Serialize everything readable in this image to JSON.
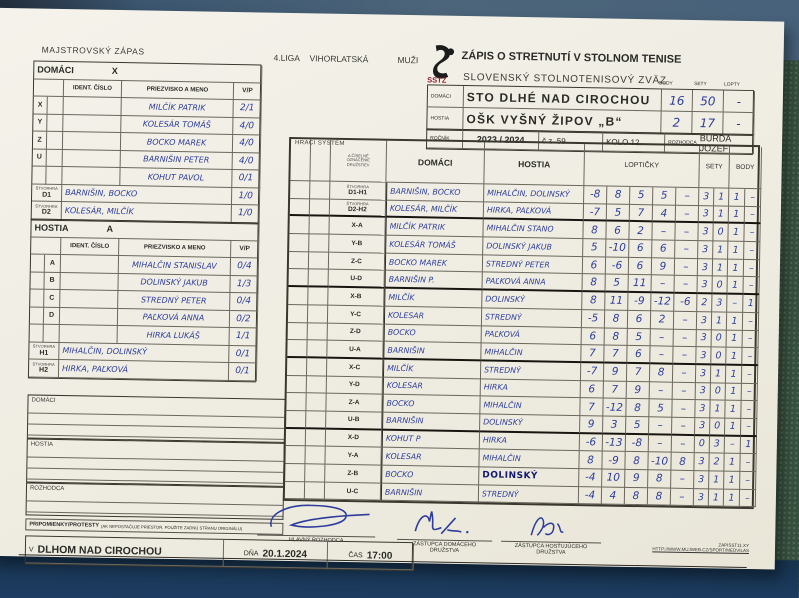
{
  "header": {
    "match_type": "MAJSTROVSKÝ ZÁPAS",
    "league": "4.LIGA",
    "region": "VIHORLATSKÁ",
    "category": "MUŽI",
    "logo_text": "SSTZ",
    "title": "ZÁPIS O STRETNUTÍ V STOLNOM TENISE",
    "subtitle": "SLOVENSKÝ STOLNOTENISOVÝ ZVÄZ",
    "score_col_labels": [
      "BODY",
      "SETY",
      "LOPTY"
    ],
    "domaci_label": "DOMÁCI",
    "hostia_label": "HOSTIA",
    "domaci_team": "STO DLHÉ NAD CIROCHOU",
    "hostia_team": "OŠK VYŠNÝ ŽIPOV „B“",
    "domaci_score": {
      "body": "16",
      "sety": "50",
      "lopty": "-"
    },
    "hostia_score": {
      "body": "2",
      "sety": "17",
      "lopty": "-"
    },
    "rocnik_label": "ROČNÍK",
    "rocnik": "2023 / 2024",
    "cz": "č.z. 59.",
    "kolo": "KOLO 12.",
    "rozhodca_label": "ROZHODCA",
    "rozhodca": "BURDA JOZEF"
  },
  "domaci_table": {
    "title": "DOMÁCI",
    "letter": "X",
    "col_ident": "IDENT. ČÍSLO",
    "col_name": "PRIEZVISKO A MENO",
    "col_vp": "V/P",
    "players": [
      {
        "code": "X",
        "name": "MILČÍK PATRIK",
        "vp": "2/1"
      },
      {
        "code": "Y",
        "name": "KOLESÁR TOMÁŠ",
        "vp": "4/0"
      },
      {
        "code": "Z",
        "name": "BOCKO MAREK",
        "vp": "4/0"
      },
      {
        "code": "U",
        "name": "BARNIŠIN PETER",
        "vp": "4/0"
      },
      {
        "code": "",
        "name": "KOHUT PAVOL",
        "vp": "0/1"
      }
    ],
    "doubles_sub": "ŠTVORHRA",
    "doubles": [
      {
        "code": "D1",
        "name": "BARNIŠIN, BOCKO",
        "vp": "1/0"
      },
      {
        "code": "D2",
        "name": "KOLESÁR, MILČÍK",
        "vp": "1/0"
      }
    ]
  },
  "hostia_table": {
    "title": "HOSTIA",
    "letter": "A",
    "col_ident": "IDENT. ČÍSLO",
    "col_name": "PRIEZVISKO A MENO",
    "col_vp": "V/P",
    "players": [
      {
        "code": "A",
        "name": "MIHALČIN STANISLAV",
        "vp": "0/4"
      },
      {
        "code": "B",
        "name": "DOLINSKÝ JAKUB",
        "vp": "1/3"
      },
      {
        "code": "C",
        "name": "STREDNÝ PETER",
        "vp": "0/4"
      },
      {
        "code": "D",
        "name": "PAĽKOVÁ ANNA",
        "vp": "0/2"
      },
      {
        "code": "",
        "name": "HIRKA LUKÁŠ",
        "vp": "1/1"
      }
    ],
    "doubles_sub": "ŠTVORHRA",
    "doubles": [
      {
        "code": "H1",
        "name": "MIHALČIN, DOLINSKÝ",
        "vp": "0/1"
      },
      {
        "code": "H2",
        "name": "HIRKA, PAĽKOVÁ",
        "vp": "0/1"
      }
    ]
  },
  "main_table": {
    "system_label": "HRACÍ SYSTÉM",
    "pair_note": [
      "A ČÍSELNÉ",
      "OZNAČENIE",
      "DRUŽSTIEV"
    ],
    "col_domaci": "DOMÁCI",
    "col_hostia": "HOSTIA",
    "col_lopticky": "LOPTIČKY",
    "col_sety": "SETY",
    "col_body": "BODY",
    "doubles_sub": "ŠTVORHRA",
    "rows": [
      {
        "code": "D1-H1",
        "sub": true,
        "domaci": "BARNIŠIN, BOCKO",
        "hostia": "MIHALČIN, DOLINSKÝ",
        "balls": [
          "-8",
          "8",
          "5",
          "5",
          "–"
        ],
        "sety": [
          "3",
          "1"
        ],
        "body": [
          "1",
          "–"
        ]
      },
      {
        "code": "D2-H2",
        "sub": true,
        "domaci": "KOLESÁR, MILČÍK",
        "hostia": "HIRKA, PAĽKOVÁ",
        "balls": [
          "-7",
          "5",
          "7",
          "4",
          "–"
        ],
        "sety": [
          "3",
          "1"
        ],
        "body": [
          "1",
          "–"
        ]
      },
      {
        "code": "X-A",
        "domaci": "MILČÍK PATRIK",
        "hostia": "MIHALČIN STANO",
        "balls": [
          "8",
          "6",
          "2",
          "–",
          "–"
        ],
        "sety": [
          "3",
          "0"
        ],
        "body": [
          "1",
          "–"
        ]
      },
      {
        "code": "Y-B",
        "domaci": "KOLESÁR TOMÁŠ",
        "hostia": "DOLINSKÝ JAKUB",
        "balls": [
          "5",
          "-10",
          "6",
          "6",
          "–"
        ],
        "sety": [
          "3",
          "1"
        ],
        "body": [
          "1",
          "–"
        ]
      },
      {
        "code": "Z-C",
        "domaci": "BOCKO MAREK",
        "hostia": "STREDNÝ PETER",
        "balls": [
          "6",
          "-6",
          "6",
          "9",
          "–"
        ],
        "sety": [
          "3",
          "1"
        ],
        "body": [
          "1",
          "–"
        ]
      },
      {
        "code": "U-D",
        "domaci": "BARNIŠIN P.",
        "hostia": "PAĽKOVÁ ANNA",
        "balls": [
          "8",
          "5",
          "11",
          "–",
          "–"
        ],
        "sety": [
          "3",
          "0"
        ],
        "body": [
          "1",
          "–"
        ]
      },
      {
        "code": "X-B",
        "domaci": "MILČÍK",
        "hostia": "DOLINSKÝ",
        "balls": [
          "8",
          "11",
          "-9",
          "-12",
          "-6"
        ],
        "sety": [
          "2",
          "3"
        ],
        "body": [
          "–",
          "1"
        ]
      },
      {
        "code": "Y-C",
        "domaci": "KOLESAR",
        "hostia": "STREDNÝ",
        "balls": [
          "-5",
          "8",
          "6",
          "2",
          "–"
        ],
        "sety": [
          "3",
          "1"
        ],
        "body": [
          "1",
          "–"
        ]
      },
      {
        "code": "Z-D",
        "domaci": "BOCKO",
        "hostia": "PAĽKOVÁ",
        "balls": [
          "6",
          "8",
          "5",
          "–",
          "–"
        ],
        "sety": [
          "3",
          "0"
        ],
        "body": [
          "1",
          "–"
        ]
      },
      {
        "code": "U-A",
        "domaci": "BARNIŠIN",
        "hostia": "MIHALČIN",
        "balls": [
          "7",
          "7",
          "6",
          "–",
          "–"
        ],
        "sety": [
          "3",
          "0"
        ],
        "body": [
          "1",
          "–"
        ]
      },
      {
        "code": "X-C",
        "domaci": "MILČÍK",
        "hostia": "STREDNÝ",
        "balls": [
          "-7",
          "9",
          "7",
          "8",
          "–"
        ],
        "sety": [
          "3",
          "1"
        ],
        "body": [
          "1",
          "–"
        ]
      },
      {
        "code": "Y-D",
        "domaci": "KOLESAR",
        "hostia": "HIRKA",
        "balls": [
          "6",
          "7",
          "9",
          "–",
          "–"
        ],
        "sety": [
          "3",
          "0"
        ],
        "body": [
          "1",
          "–"
        ]
      },
      {
        "code": "Z-A",
        "domaci": "BOCKO",
        "hostia": "MIHALČIN",
        "balls": [
          "7",
          "-12",
          "8",
          "5",
          "–"
        ],
        "sety": [
          "3",
          "1"
        ],
        "body": [
          "1",
          "–"
        ]
      },
      {
        "code": "U-B",
        "domaci": "BARNIŠIN",
        "hostia": "DOLINSKÝ",
        "balls": [
          "9",
          "3",
          "5",
          "–",
          "–"
        ],
        "sety": [
          "3",
          "0"
        ],
        "body": [
          "1",
          "–"
        ]
      },
      {
        "code": "X-D",
        "domaci": "KOHUT P",
        "hostia": "HIRKA",
        "balls": [
          "-6",
          "-13",
          "-8",
          "–",
          "–"
        ],
        "sety": [
          "0",
          "3"
        ],
        "body": [
          "–",
          "1"
        ]
      },
      {
        "code": "Y-A",
        "domaci": "KOLESAR",
        "hostia": "MIHALČIN",
        "balls": [
          "8",
          "-9",
          "8",
          "-10",
          "8"
        ],
        "sety": [
          "3",
          "2"
        ],
        "body": [
          "1",
          "–"
        ]
      },
      {
        "code": "Z-B",
        "domaci": "BOCKO",
        "hostia": "DOLINSKÝ",
        "hostia_marker": true,
        "balls": [
          "-4",
          "10",
          "9",
          "8",
          "–"
        ],
        "sety": [
          "3",
          "1"
        ],
        "body": [
          "1",
          "–"
        ]
      },
      {
        "code": "U-C",
        "domaci": "BARNIŠIN",
        "hostia": "STREDNÝ",
        "balls": [
          "-4",
          "4",
          "8",
          "8",
          "–"
        ],
        "sety": [
          "3",
          "1"
        ],
        "body": [
          "1",
          "–"
        ]
      }
    ]
  },
  "footer": {
    "notes_domaci_label": "DOMÁCI",
    "notes_hostia_label": "HOSTIA",
    "notes_rozhodca_label": "ROZHODCA",
    "protest_bold": "PRIPOMIENKY/PROTESTY",
    "protest_rest": "(AK NEPOSTAČUJE PRIESTOR, POUŽITE ZADNÚ STRANU ORIGINÁLU)",
    "place_label": "V",
    "place": "DLHOM NAD CIROCHOU",
    "date_label": "DŇA",
    "date": "20.1.2024",
    "time_label": "ČAS",
    "time": "17:00",
    "sig_main_label": "HLAVNÝ ROZHODCA",
    "sig_home_label1": "ZÁSTUPCA DOMÁCEHO",
    "sig_home_label2": "DRUŽSTVA",
    "sig_away_label1": "ZÁSTUPCA HOSŤUJÚCEHO",
    "sig_away_label2": "DRUŽSTVA",
    "fineprint1": "ZAPISST11.XY",
    "fineprint2": "HTTP://WWW.MUJWEB.CZ/SPORT/MEDVILAS"
  }
}
